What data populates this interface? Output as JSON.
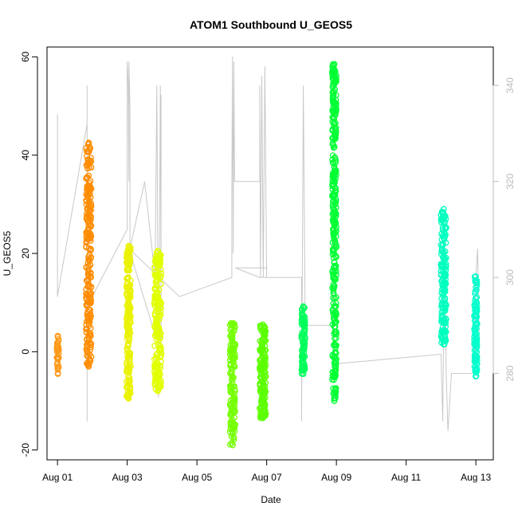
{
  "chart_data": {
    "type": "scatter",
    "title": "ATOM1 Southbound U_GEOS5",
    "xlabel": "Date",
    "ylabel": "U_GEOS5",
    "x_ticks": [
      "Aug 01",
      "Aug 03",
      "Aug 05",
      "Aug 07",
      "Aug 09",
      "Aug 11",
      "Aug 13"
    ],
    "x_tick_days": [
      1,
      3,
      5,
      7,
      9,
      11,
      13
    ],
    "xlim": [
      0.7,
      13.5
    ],
    "ylim": [
      -22,
      62
    ],
    "y_ticks": [
      "-20",
      "0",
      "20",
      "40",
      "60"
    ],
    "y_tick_values": [
      -20,
      0,
      20,
      40,
      60
    ],
    "y2_label": "",
    "y2lim": [
      262,
      348
    ],
    "y2_ticks": [
      "280",
      "300",
      "320",
      "340"
    ],
    "y2_tick_values": [
      280,
      300,
      320,
      340
    ],
    "grid": false,
    "legend": "none",
    "secondary_series": {
      "name": "",
      "color": "#c8c8c8",
      "style": "line",
      "points": [
        [
          1.0,
          318
        ],
        [
          1.0,
          334
        ],
        [
          1.0,
          332
        ],
        [
          1.0,
          330
        ],
        [
          1.0,
          296
        ],
        [
          1.85,
          332
        ],
        [
          1.85,
          330
        ],
        [
          1.85,
          340
        ],
        [
          1.85,
          270
        ],
        [
          1.85,
          330
        ],
        [
          1.85,
          294
        ],
        [
          3.0,
          310
        ],
        [
          3.0,
          345
        ],
        [
          3.03,
          340
        ],
        [
          3.05,
          320
        ],
        [
          3.05,
          345
        ],
        [
          3.08,
          335
        ],
        [
          3.08,
          306
        ],
        [
          3.5,
          320
        ],
        [
          3.8,
          300
        ],
        [
          3.85,
          340
        ],
        [
          3.9,
          275
        ],
        [
          3.95,
          340
        ],
        [
          3.97,
          300
        ],
        [
          3.97,
          338
        ],
        [
          3.97,
          286
        ],
        [
          3.8,
          288
        ],
        [
          3.05,
          306
        ],
        [
          4.5,
          296
        ],
        [
          6.0,
          300
        ],
        [
          6.0,
          318
        ],
        [
          6.02,
          346
        ],
        [
          6.04,
          305
        ],
        [
          6.06,
          345
        ],
        [
          6.08,
          320
        ],
        [
          6.5,
          320
        ],
        [
          6.8,
          320
        ],
        [
          6.8,
          340
        ],
        [
          6.82,
          300
        ],
        [
          6.86,
          342
        ],
        [
          6.9,
          300
        ],
        [
          6.95,
          344
        ],
        [
          7.0,
          300
        ],
        [
          7.0,
          302
        ],
        [
          6.1,
          302
        ],
        [
          6.8,
          300
        ],
        [
          8.0,
          300
        ],
        [
          8.0,
          270
        ],
        [
          8.05,
          340
        ],
        [
          8.1,
          296
        ],
        [
          8.1,
          290
        ],
        [
          8.9,
          290
        ],
        [
          8.9,
          300
        ],
        [
          8.93,
          280
        ],
        [
          9.0,
          282
        ],
        [
          12.0,
          284
        ],
        [
          12.05,
          270
        ],
        [
          12.1,
          310
        ],
        [
          12.15,
          280
        ],
        [
          12.2,
          268
        ],
        [
          12.3,
          280
        ],
        [
          12.95,
          280
        ],
        [
          13.0,
          300
        ],
        [
          13.05,
          306
        ],
        [
          13.1,
          286
        ]
      ]
    },
    "series": [
      {
        "name": "",
        "color": "#ff9a1a",
        "x_range": [
          0.98,
          1.04
        ],
        "y_range": [
          -4.5,
          3.2
        ],
        "count": 40
      },
      {
        "name": "",
        "color": "#ff8c00",
        "x_range": [
          1.82,
          1.97
        ],
        "y_range": [
          -3,
          42.5
        ],
        "count": 240
      },
      {
        "name": "",
        "color": "#eaf200",
        "x_range": [
          2.98,
          3.1
        ],
        "y_range": [
          -9.5,
          21.5
        ],
        "count": 200
      },
      {
        "name": "",
        "color": "#e2ff00",
        "x_range": [
          3.78,
          3.98
        ],
        "y_range": [
          -8,
          20.5
        ],
        "count": 200
      },
      {
        "name": "",
        "color": "#74ff00",
        "x_range": [
          5.95,
          6.1
        ],
        "y_range": [
          -19,
          5.8
        ],
        "count": 150
      },
      {
        "name": "",
        "color": "#5cff00",
        "x_range": [
          6.8,
          6.98
        ],
        "y_range": [
          -13.5,
          5.5
        ],
        "count": 170
      },
      {
        "name": "",
        "color": "#00ff5a",
        "x_range": [
          8.0,
          8.1
        ],
        "y_range": [
          -4.5,
          9.2
        ],
        "count": 90
      },
      {
        "name": "",
        "color": "#00ff33",
        "x_range": [
          8.88,
          9.0
        ],
        "y_range": [
          -10,
          58.5
        ],
        "count": 320
      },
      {
        "name": "",
        "color": "#00ffbf",
        "x_range": [
          12.0,
          12.15
        ],
        "y_range": [
          1.5,
          29
        ],
        "count": 160
      },
      {
        "name": "",
        "color": "#00ffcc",
        "x_range": [
          12.95,
          13.04
        ],
        "y_range": [
          -5,
          15.3
        ],
        "count": 100
      }
    ]
  }
}
